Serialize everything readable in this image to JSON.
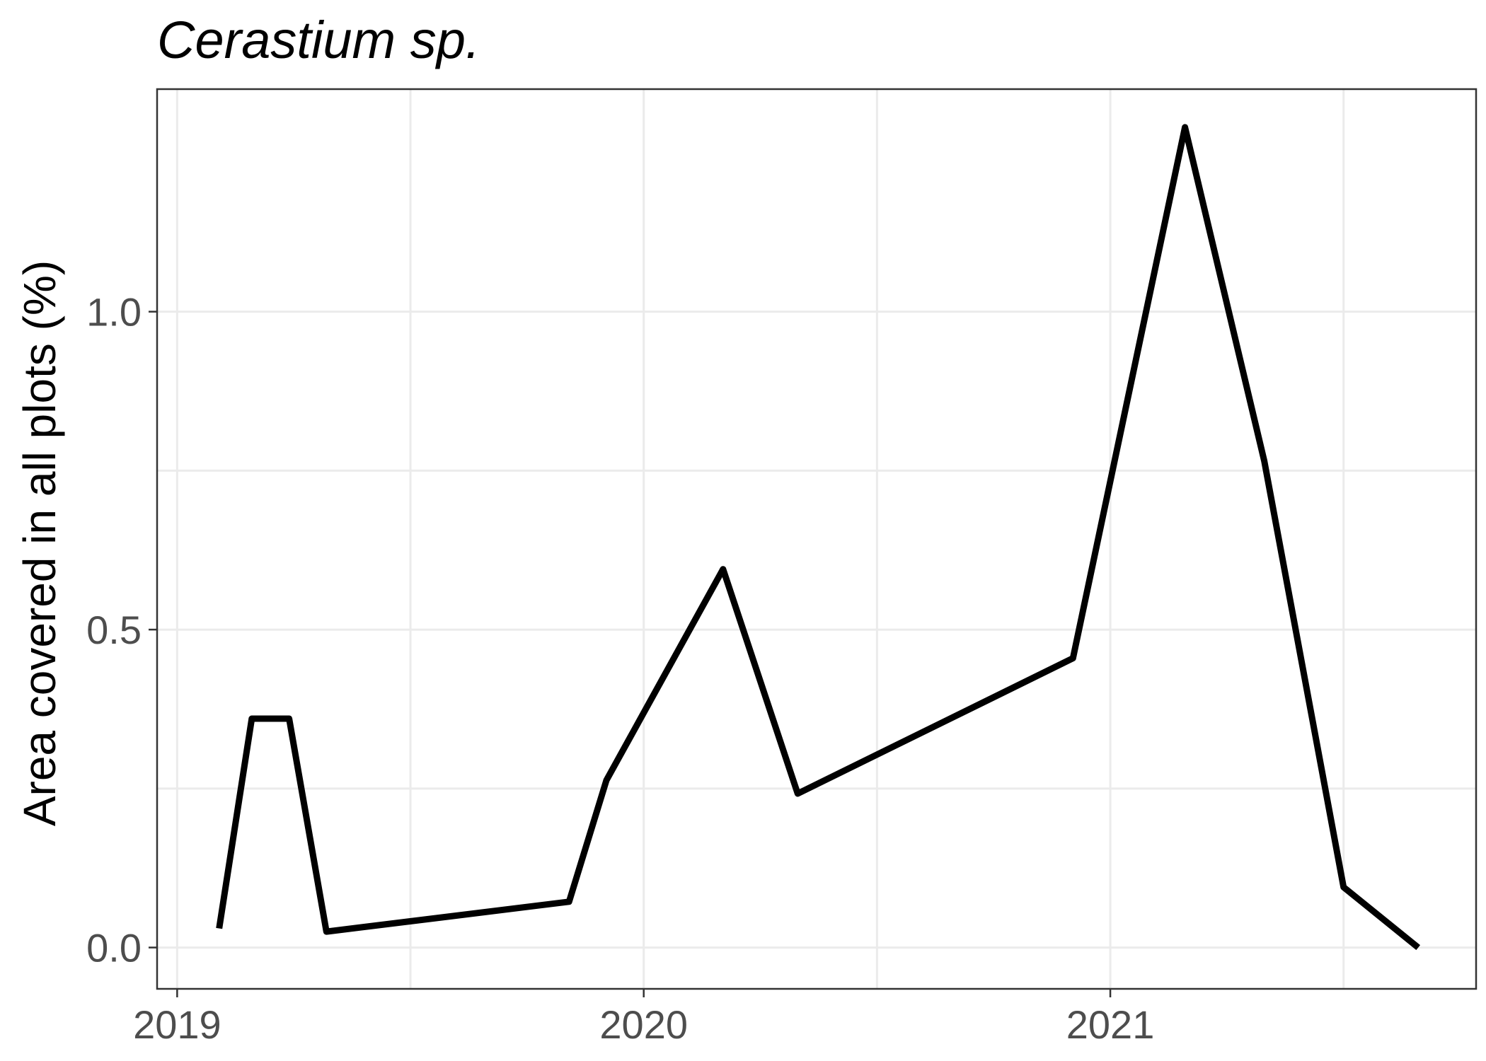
{
  "chart_data": {
    "type": "line",
    "title": "Cerastium sp.",
    "xlabel": "",
    "ylabel": "Area covered in all plots (%)",
    "x_ticks": [
      2019,
      2020,
      2021
    ],
    "x_tick_labels": [
      "2019",
      "2020",
      "2021"
    ],
    "y_ticks": [
      0.0,
      0.5,
      1.0
    ],
    "y_tick_labels": [
      "0.0",
      "0.5",
      "1.0"
    ],
    "xlim": [
      2018.957,
      2021.784
    ],
    "ylim": [
      -0.065,
      1.35
    ],
    "grid": true,
    "series": [
      {
        "name": "Cerastium sp.",
        "color": "#000000",
        "x": [
          2019.09,
          2019.16,
          2019.24,
          2019.32,
          2019.84,
          2019.92,
          2020.17,
          2020.33,
          2020.92,
          2021.16,
          2021.33,
          2021.5,
          2021.66
        ],
        "y": [
          0.03,
          0.36,
          0.36,
          0.025,
          0.072,
          0.263,
          0.595,
          0.242,
          0.455,
          1.29,
          0.765,
          0.095,
          0.0
        ]
      }
    ]
  }
}
